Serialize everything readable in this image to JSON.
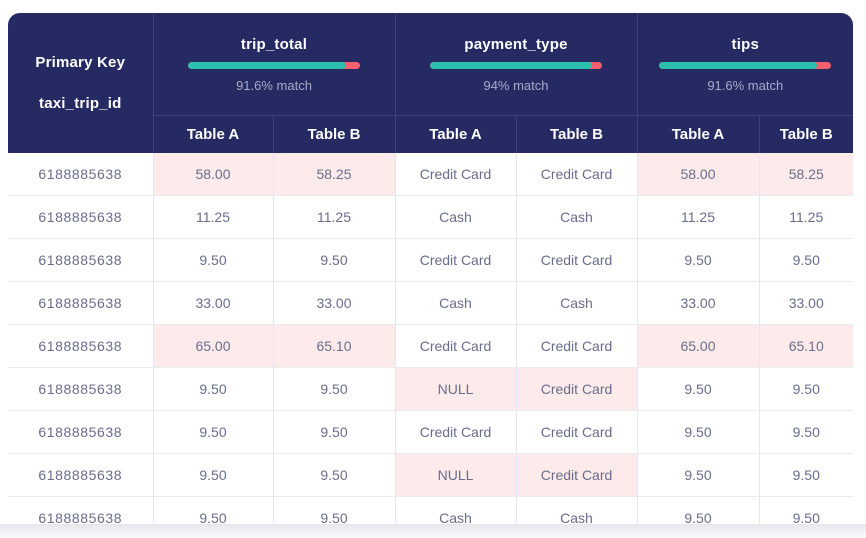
{
  "table": {
    "primary_key": {
      "title": "Primary Key",
      "field": "taxi_trip_id"
    },
    "groups": [
      {
        "name": "trip_total",
        "match_pct": 91.6,
        "match_label": "91.6% match",
        "columns": [
          "Table A",
          "Table B"
        ]
      },
      {
        "name": "payment_type",
        "match_pct": 94,
        "match_label": "94% match",
        "columns": [
          "Table A",
          "Table B"
        ]
      },
      {
        "name": "tips",
        "match_pct": 91.6,
        "match_label": "91.6% match",
        "columns": [
          "Table A",
          "Table B"
        ]
      }
    ],
    "rows": [
      {
        "id": "6188885638",
        "trip_total": [
          "58.00",
          "58.25"
        ],
        "trip_total_mismatch": true,
        "payment_type": [
          "Credit Card",
          "Credit Card"
        ],
        "payment_type_mismatch": false,
        "tips": [
          "58.00",
          "58.25"
        ],
        "tips_mismatch": true
      },
      {
        "id": "6188885638",
        "trip_total": [
          "11.25",
          "11.25"
        ],
        "trip_total_mismatch": false,
        "payment_type": [
          "Cash",
          "Cash"
        ],
        "payment_type_mismatch": false,
        "tips": [
          "11.25",
          "11.25"
        ],
        "tips_mismatch": false
      },
      {
        "id": "6188885638",
        "trip_total": [
          "9.50",
          "9.50"
        ],
        "trip_total_mismatch": false,
        "payment_type": [
          "Credit Card",
          "Credit Card"
        ],
        "payment_type_mismatch": false,
        "tips": [
          "9.50",
          "9.50"
        ],
        "tips_mismatch": false
      },
      {
        "id": "6188885638",
        "trip_total": [
          "33.00",
          "33.00"
        ],
        "trip_total_mismatch": false,
        "payment_type": [
          "Cash",
          "Cash"
        ],
        "payment_type_mismatch": false,
        "tips": [
          "33.00",
          "33.00"
        ],
        "tips_mismatch": false
      },
      {
        "id": "6188885638",
        "trip_total": [
          "65.00",
          "65.10"
        ],
        "trip_total_mismatch": true,
        "payment_type": [
          "Credit Card",
          "Credit Card"
        ],
        "payment_type_mismatch": false,
        "tips": [
          "65.00",
          "65.10"
        ],
        "tips_mismatch": true
      },
      {
        "id": "6188885638",
        "trip_total": [
          "9.50",
          "9.50"
        ],
        "trip_total_mismatch": false,
        "payment_type": [
          "NULL",
          "Credit Card"
        ],
        "payment_type_mismatch": true,
        "tips": [
          "9.50",
          "9.50"
        ],
        "tips_mismatch": false
      },
      {
        "id": "6188885638",
        "trip_total": [
          "9.50",
          "9.50"
        ],
        "trip_total_mismatch": false,
        "payment_type": [
          "Credit Card",
          "Credit Card"
        ],
        "payment_type_mismatch": false,
        "tips": [
          "9.50",
          "9.50"
        ],
        "tips_mismatch": false
      },
      {
        "id": "6188885638",
        "trip_total": [
          "9.50",
          "9.50"
        ],
        "trip_total_mismatch": false,
        "payment_type": [
          "NULL",
          "Credit Card"
        ],
        "payment_type_mismatch": true,
        "tips": [
          "9.50",
          "9.50"
        ],
        "tips_mismatch": false
      },
      {
        "id": "6188885638",
        "trip_total": [
          "9.50",
          "9.50"
        ],
        "trip_total_mismatch": false,
        "payment_type": [
          "Cash",
          "Cash"
        ],
        "payment_type_mismatch": false,
        "tips": [
          "9.50",
          "9.50"
        ],
        "tips_mismatch": false
      }
    ]
  },
  "colors": {
    "header_navy": "#252a63",
    "header_divider": "#3d4378",
    "progress_match_teal": "#2bbfad",
    "progress_mismatch_red": "#f4606d",
    "match_label_text": "#a7abc9",
    "mismatch_cell_pink": "#fcebea",
    "body_text": "#696d8c"
  }
}
